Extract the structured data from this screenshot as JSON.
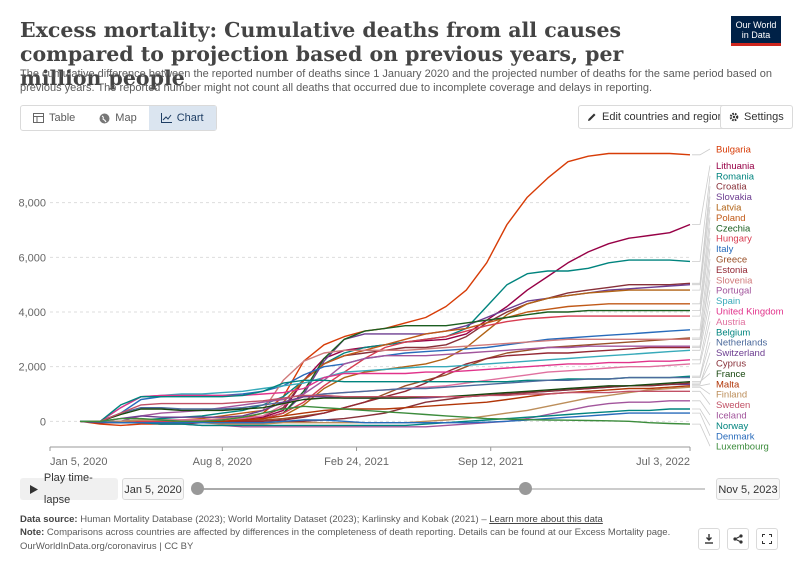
{
  "header": {
    "title": "Excess mortality: Cumulative deaths from all causes compared to projection based on previous years, per million people",
    "subtitle": "The cumulative difference between the reported number of deaths since 1 January 2020 and the projected number of deaths for the same period based on previous years. The reported number might not count all deaths that occurred due to incomplete coverage and delays in reporting.",
    "logo_line1": "Our World",
    "logo_line2": "in Data"
  },
  "tabs": [
    {
      "label": "Table",
      "icon": "table-icon"
    },
    {
      "label": "Map",
      "icon": "globe-icon"
    },
    {
      "label": "Chart",
      "icon": "line-chart-icon"
    }
  ],
  "buttons": {
    "edit": "Edit countries and regions",
    "settings": "Settings"
  },
  "timeline": {
    "play": "Play time-lapse",
    "start": "Jan 5, 2020",
    "end": "Nov 5, 2023",
    "start_fraction": 0.0,
    "end_fraction": 0.645
  },
  "footer": {
    "source_label": "Data source:",
    "source_text": "Human Mortality Database (2023); World Mortality Dataset (2023); Karlinsky and Kobak (2021) –",
    "source_link": "Learn more about this data",
    "note_label": "Note:",
    "note_text": "Comparisons across countries are affected by differences in the completeness of death reporting. Details can be found at our Excess Mortality page.",
    "credit": "OurWorldInData.org/coronavirus | CC BY"
  },
  "chart_data": {
    "type": "line",
    "title": "Excess mortality: Cumulative deaths from all causes compared to projection based on previous years, per million people",
    "xlabel": "",
    "ylabel": "",
    "xlim": [
      0,
      30
    ],
    "ylim": [
      -500,
      10000
    ],
    "x_ticks": [
      {
        "label": "Jan 5, 2020",
        "x": 0
      },
      {
        "label": "Aug 8, 2020",
        "x": 7
      },
      {
        "label": "Feb 24, 2021",
        "x": 13.6
      },
      {
        "label": "Sep 12, 2021",
        "x": 20.2
      },
      {
        "label": "Jul 3, 2022",
        "x": 30
      }
    ],
    "y_ticks": [
      0,
      2000,
      4000,
      6000,
      8000
    ],
    "x": [
      0,
      1,
      2,
      3,
      4,
      5,
      6,
      7,
      8,
      9,
      10,
      11,
      12,
      13,
      14,
      15,
      16,
      17,
      18,
      19,
      20,
      21,
      22,
      23,
      24,
      25,
      26,
      27,
      28,
      29,
      30
    ],
    "series": [
      {
        "name": "Bulgaria",
        "color": "#d73c07",
        "values": [
          0,
          -100,
          -150,
          -100,
          -100,
          -50,
          0,
          50,
          100,
          300,
          900,
          2200,
          2800,
          3100,
          3300,
          3400,
          3600,
          3800,
          4200,
          4800,
          5800,
          7200,
          8200,
          8900,
          9500,
          9700,
          9800,
          9800,
          9800,
          9800,
          9750
        ]
      },
      {
        "name": "Lithuania",
        "color": "#970046",
        "values": [
          0,
          -50,
          -50,
          -50,
          -50,
          -50,
          0,
          50,
          100,
          150,
          400,
          1500,
          2300,
          2600,
          2700,
          2800,
          2900,
          2950,
          3000,
          3200,
          3700,
          4200,
          4800,
          5300,
          5800,
          6200,
          6500,
          6700,
          6800,
          6900,
          7200
        ]
      },
      {
        "name": "Romania",
        "color": "#00847e",
        "values": [
          0,
          -20,
          0,
          50,
          100,
          150,
          200,
          300,
          400,
          600,
          900,
          1500,
          2100,
          2500,
          2700,
          2800,
          2900,
          3000,
          3100,
          3400,
          4200,
          5000,
          5400,
          5500,
          5500,
          5600,
          5800,
          5900,
          5900,
          5900,
          5850
        ]
      },
      {
        "name": "Croatia",
        "color": "#883039",
        "values": [
          0,
          -50,
          -50,
          -50,
          -50,
          0,
          0,
          50,
          100,
          200,
          500,
          1500,
          2100,
          2400,
          2500,
          2600,
          2700,
          2700,
          2800,
          3100,
          3600,
          4000,
          4300,
          4500,
          4700,
          4800,
          4900,
          5000,
          5000,
          5000,
          5050
        ]
      },
      {
        "name": "Slovakia",
        "color": "#6d3e91",
        "values": [
          0,
          -50,
          -50,
          -50,
          -50,
          0,
          0,
          0,
          50,
          100,
          300,
          1000,
          2200,
          3000,
          3200,
          3200,
          3200,
          3200,
          3300,
          3500,
          3800,
          4100,
          4400,
          4500,
          4600,
          4700,
          4800,
          4850,
          4900,
          4950,
          5000
        ]
      },
      {
        "name": "Latvia",
        "color": "#b16214",
        "values": [
          0,
          -30,
          -50,
          -50,
          -50,
          -30,
          0,
          0,
          50,
          100,
          200,
          600,
          1200,
          1600,
          1800,
          1900,
          2000,
          2100,
          2300,
          2700,
          3300,
          3900,
          4300,
          4500,
          4600,
          4700,
          4750,
          4800,
          4800,
          4800,
          4800
        ]
      },
      {
        "name": "Poland",
        "color": "#c05917",
        "values": [
          0,
          -20,
          0,
          0,
          0,
          50,
          100,
          200,
          300,
          400,
          700,
          1500,
          2100,
          2400,
          2600,
          2800,
          3000,
          3200,
          3300,
          3400,
          3600,
          3800,
          4000,
          4100,
          4200,
          4250,
          4300,
          4300,
          4300,
          4300,
          4300
        ]
      },
      {
        "name": "Czechia",
        "color": "#1b5e20",
        "values": [
          0,
          -30,
          -30,
          -30,
          -30,
          0,
          0,
          0,
          50,
          100,
          300,
          1100,
          2300,
          3000,
          3300,
          3400,
          3500,
          3500,
          3500,
          3600,
          3700,
          3800,
          3900,
          4000,
          4000,
          4050,
          4050,
          4050,
          4050,
          4050,
          4050
        ]
      },
      {
        "name": "Hungary",
        "color": "#d73c50",
        "values": [
          0,
          -20,
          0,
          0,
          0,
          0,
          0,
          0,
          50,
          100,
          300,
          700,
          1300,
          1800,
          2300,
          2700,
          2900,
          3000,
          3100,
          3300,
          3500,
          3650,
          3750,
          3800,
          3850,
          3850,
          3850,
          3850,
          3850,
          3850,
          3850
        ]
      },
      {
        "name": "Italy",
        "color": "#286bbb",
        "values": [
          0,
          0,
          300,
          800,
          900,
          950,
          950,
          950,
          1000,
          1100,
          1300,
          1700,
          2000,
          2100,
          2300,
          2400,
          2500,
          2550,
          2600,
          2650,
          2700,
          2800,
          2900,
          3000,
          3050,
          3100,
          3150,
          3200,
          3250,
          3300,
          3350
        ]
      },
      {
        "name": "Greece",
        "color": "#9a5129",
        "values": [
          0,
          -30,
          -30,
          -50,
          -50,
          -30,
          0,
          0,
          0,
          50,
          100,
          200,
          300,
          500,
          700,
          1000,
          1300,
          1500,
          1700,
          2000,
          2300,
          2500,
          2600,
          2700,
          2750,
          2800,
          2850,
          2900,
          2950,
          3000,
          3050
        ]
      },
      {
        "name": "Estonia",
        "color": "#932834",
        "values": [
          0,
          -50,
          -50,
          -50,
          -100,
          -100,
          -50,
          -50,
          0,
          0,
          50,
          150,
          300,
          500,
          700,
          900,
          1100,
          1400,
          1800,
          2100,
          2300,
          2400,
          2450,
          2500,
          2500,
          2550,
          2600,
          2650,
          2700,
          2700,
          2700
        ]
      },
      {
        "name": "Slovenia",
        "color": "#d07a7a",
        "values": [
          0,
          -30,
          0,
          50,
          50,
          50,
          50,
          100,
          200,
          400,
          1500,
          2200,
          2500,
          2600,
          2600,
          2600,
          2600,
          2650,
          2700,
          2750,
          2800,
          2850,
          2900,
          2950,
          3000,
          3000,
          3000,
          3000,
          3000,
          3000,
          3000
        ]
      },
      {
        "name": "Portugal",
        "color": "#a2559c",
        "values": [
          0,
          -30,
          0,
          200,
          300,
          350,
          400,
          500,
          600,
          700,
          800,
          1000,
          1500,
          2100,
          2300,
          2400,
          2400,
          2400,
          2450,
          2500,
          2550,
          2600,
          2650,
          2700,
          2700,
          2750,
          2750,
          2750,
          2750,
          2750,
          2750
        ]
      },
      {
        "name": "Spain",
        "color": "#38aaba",
        "values": [
          0,
          0,
          500,
          900,
          950,
          1000,
          1000,
          1050,
          1100,
          1200,
          1300,
          1400,
          1600,
          1800,
          1850,
          1900,
          1950,
          2000,
          2000,
          2050,
          2100,
          2150,
          2200,
          2250,
          2300,
          2350,
          2400,
          2450,
          2500,
          2550,
          2600
        ]
      },
      {
        "name": "United Kingdom",
        "color": "#e1338b",
        "values": [
          0,
          0,
          500,
          900,
          950,
          950,
          950,
          950,
          950,
          1000,
          1050,
          1200,
          1600,
          1750,
          1750,
          1750,
          1750,
          1800,
          1800,
          1850,
          1900,
          1950,
          2000,
          2050,
          2100,
          2100,
          2150,
          2150,
          2200,
          2200,
          2250
        ]
      },
      {
        "name": "Austria",
        "color": "#e0719f",
        "values": [
          0,
          -20,
          0,
          50,
          50,
          50,
          50,
          50,
          100,
          200,
          600,
          900,
          1000,
          1050,
          1100,
          1150,
          1200,
          1250,
          1300,
          1400,
          1500,
          1600,
          1700,
          1800,
          1850,
          1900,
          1950,
          2000,
          2000,
          2050,
          2100
        ]
      },
      {
        "name": "Belgium",
        "color": "#00847e",
        "values": [
          0,
          0,
          600,
          900,
          900,
          900,
          900,
          900,
          950,
          1100,
          1400,
          1500,
          1500,
          1450,
          1450,
          1450,
          1450,
          1450,
          1450,
          1450,
          1450,
          1450,
          1500,
          1500,
          1550,
          1550,
          1550,
          1600,
          1600,
          1600,
          1650
        ]
      },
      {
        "name": "Netherlands",
        "color": "#4c6a9c",
        "values": [
          0,
          0,
          300,
          500,
          500,
          450,
          450,
          450,
          500,
          600,
          700,
          900,
          1000,
          1050,
          1100,
          1150,
          1200,
          1200,
          1250,
          1300,
          1350,
          1400,
          1450,
          1500,
          1500,
          1550,
          1550,
          1600,
          1600,
          1600,
          1600
        ]
      },
      {
        "name": "Switzerland",
        "color": "#6d3e91",
        "values": [
          0,
          0,
          100,
          200,
          150,
          150,
          150,
          150,
          200,
          400,
          700,
          900,
          900,
          850,
          850,
          850,
          850,
          850,
          900,
          900,
          950,
          1000,
          1050,
          1100,
          1150,
          1200,
          1250,
          1300,
          1300,
          1350,
          1350
        ]
      },
      {
        "name": "Cyprus",
        "color": "#883039",
        "values": [
          0,
          -30,
          -50,
          -50,
          -50,
          -50,
          -50,
          -50,
          -50,
          -50,
          -30,
          0,
          50,
          100,
          200,
          300,
          500,
          700,
          800,
          900,
          950,
          1000,
          1050,
          1100,
          1150,
          1200,
          1250,
          1300,
          1300,
          1350,
          1400
        ]
      },
      {
        "name": "France",
        "color": "#18470f",
        "values": [
          0,
          0,
          250,
          450,
          450,
          400,
          400,
          400,
          450,
          500,
          650,
          800,
          850,
          850,
          850,
          850,
          850,
          900,
          900,
          950,
          1000,
          1050,
          1100,
          1150,
          1200,
          1250,
          1300,
          1300,
          1350,
          1400,
          1450
        ]
      },
      {
        "name": "Malta",
        "color": "#b13507",
        "values": [
          0,
          -30,
          -50,
          -50,
          -50,
          -50,
          -30,
          0,
          50,
          100,
          200,
          300,
          400,
          450,
          450,
          450,
          500,
          550,
          600,
          650,
          700,
          800,
          900,
          1000,
          1050,
          1100,
          1150,
          1200,
          1200,
          1250,
          1300
        ]
      },
      {
        "name": "Finland",
        "color": "#bc8e5a",
        "values": [
          0,
          -20,
          0,
          50,
          50,
          0,
          -50,
          -100,
          -100,
          -100,
          -50,
          -50,
          -50,
          -50,
          -50,
          -50,
          -50,
          0,
          50,
          100,
          200,
          300,
          400,
          550,
          700,
          850,
          950,
          1050,
          1150,
          1200,
          1250
        ]
      },
      {
        "name": "Sweden",
        "color": "#c15065",
        "values": [
          0,
          0,
          300,
          600,
          650,
          650,
          650,
          650,
          700,
          750,
          850,
          950,
          950,
          900,
          900,
          900,
          900,
          900,
          900,
          900,
          950,
          950,
          1000,
          1000,
          1050,
          1050,
          1050,
          1100,
          1100,
          1100,
          1100
        ]
      },
      {
        "name": "Iceland",
        "color": "#a2559c",
        "values": [
          0,
          -20,
          -50,
          -50,
          -100,
          -100,
          -150,
          -150,
          -200,
          -200,
          -200,
          -200,
          -200,
          -200,
          -200,
          -200,
          -200,
          -200,
          -150,
          -100,
          -50,
          0,
          100,
          250,
          400,
          550,
          650,
          700,
          700,
          750,
          750
        ]
      },
      {
        "name": "Norway",
        "color": "#00847e",
        "values": [
          0,
          -20,
          -50,
          -50,
          -100,
          -100,
          -150,
          -150,
          -150,
          -150,
          -150,
          -150,
          -150,
          -150,
          -150,
          -150,
          -150,
          -100,
          -50,
          0,
          50,
          100,
          150,
          200,
          250,
          300,
          350,
          400,
          400,
          450,
          450
        ]
      },
      {
        "name": "Denmark",
        "color": "#286bbb",
        "values": [
          0,
          -20,
          -50,
          -50,
          -50,
          -50,
          -50,
          -50,
          -50,
          -50,
          0,
          50,
          50,
          0,
          -50,
          -50,
          -50,
          -50,
          -50,
          -50,
          -30,
          0,
          50,
          100,
          150,
          200,
          250,
          300,
          300,
          300,
          300
        ]
      },
      {
        "name": "Luxembourg",
        "color": "#3c8c3c",
        "values": [
          0,
          0,
          100,
          100,
          50,
          0,
          0,
          50,
          150,
          300,
          450,
          550,
          500,
          450,
          400,
          350,
          300,
          250,
          200,
          150,
          100,
          80,
          60,
          50,
          40,
          30,
          20,
          0,
          -50,
          -80,
          -100
        ]
      }
    ],
    "legend_position": "right"
  }
}
